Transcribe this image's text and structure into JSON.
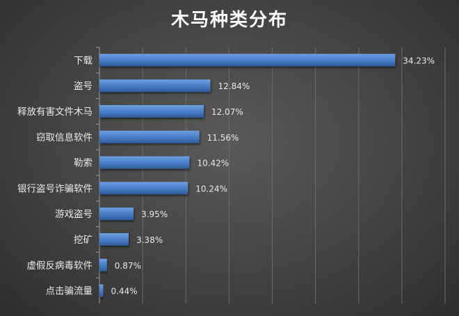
{
  "chart_data": {
    "type": "bar",
    "orientation": "horizontal",
    "title": "木马种类分布",
    "categories": [
      "下载",
      "盗号",
      "释放有害文件木马",
      "窃取信息软件",
      "勒索",
      "银行盗号诈骗软件",
      "游戏盗号",
      "挖矿",
      "虚假反病毒软件",
      "点击骗流量"
    ],
    "values": [
      34.23,
      12.84,
      12.07,
      11.56,
      10.42,
      10.24,
      3.95,
      3.38,
      0.87,
      0.44
    ],
    "data_labels": [
      "34.23%",
      "12.84%",
      "12.07%",
      "11.56%",
      "10.42%",
      "10.24%",
      "3.95%",
      "3.38%",
      "0.87%",
      "0.44%"
    ],
    "xlim": [
      0,
      40
    ],
    "grid": true,
    "legend": "none",
    "bar_color": "#4a7fc8",
    "background_color": "#404040"
  }
}
